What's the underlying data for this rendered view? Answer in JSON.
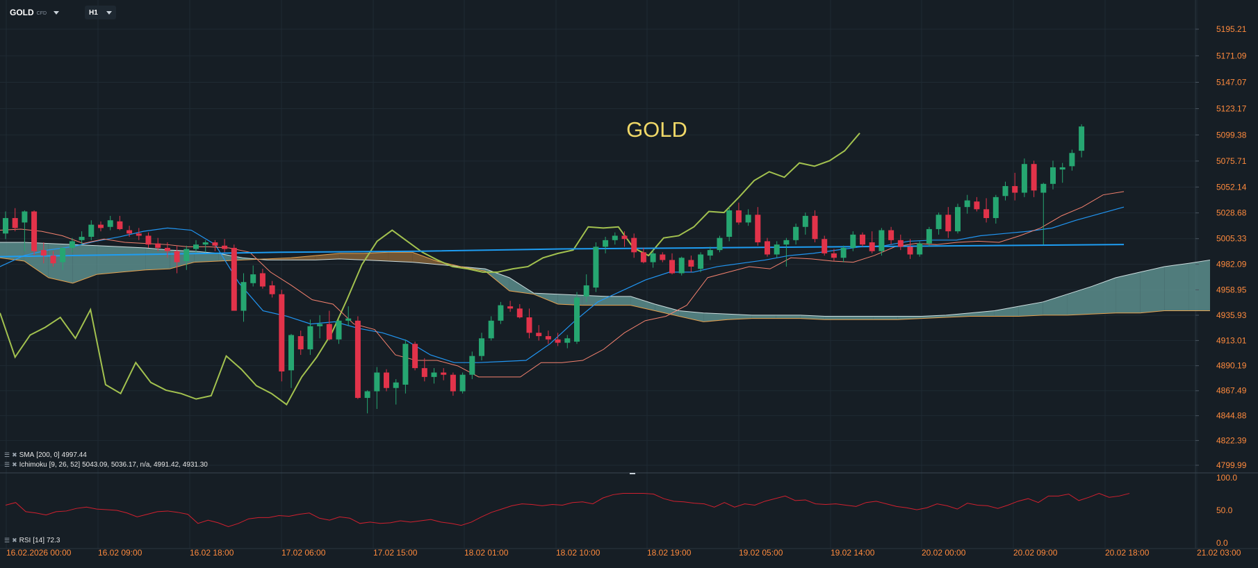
{
  "toolbar": {
    "symbol": "GOLD",
    "symbol_type": "CFD",
    "timeframe": "H1"
  },
  "chart_data": {
    "type": "candlestick",
    "title": "GOLD",
    "colors": {
      "background": "#161e25",
      "up": "#26a671",
      "down": "#e2334a",
      "sma": "#1e9df2",
      "tenkan": "#f5826f",
      "kijun": "#2196f3",
      "chikou": "#a3c24f",
      "cloud_bull": "#5f9392",
      "cloud_bear": "#8a6438",
      "axis_text": "#ff8a3d",
      "rsi": "#d1202f",
      "title_text": "#f0d868"
    },
    "price_axis": {
      "ylim": [
        4799.99,
        5195.21
      ],
      "ticks": [
        "5195.21",
        "5171.09",
        "5147.07",
        "5123.17",
        "5099.38",
        "5075.71",
        "5052.14",
        "5028.68",
        "5005.33",
        "4982.09",
        "4958.95",
        "4935.93",
        "4913.01",
        "4890.19",
        "4867.49",
        "4844.88",
        "4822.39",
        "4799.99"
      ]
    },
    "time_axis": {
      "labels": [
        "16.02.2026  00:00",
        "16.02  09:00",
        "16.02  18:00",
        "17.02  06:00",
        "17.02  15:00",
        "18.02  01:00",
        "18.02  10:00",
        "18.02  19:00",
        "19.02  05:00",
        "19.02  14:00",
        "20.02  00:00",
        "20.02  09:00",
        "20.02  18:00",
        "21.02  03:00"
      ]
    },
    "candles": [
      [
        5010,
        5030,
        5005,
        5024
      ],
      [
        5024,
        5033,
        5012,
        5015
      ],
      [
        5020,
        5031,
        4994,
        5030
      ],
      [
        5030,
        5031,
        4990,
        4994
      ],
      [
        4995,
        5002,
        4983,
        4990
      ],
      [
        4990,
        4994,
        4980,
        4983
      ],
      [
        4984,
        4997,
        4977,
        4997
      ],
      [
        4997,
        5006,
        4993,
        5003
      ],
      [
        5004,
        5012,
        5000,
        5007
      ],
      [
        5007,
        5022,
        5004,
        5018
      ],
      [
        5018,
        5021,
        5012,
        5015
      ],
      [
        5016,
        5026,
        5013,
        5022
      ],
      [
        5021,
        5026,
        5013,
        5014
      ],
      [
        5013,
        5017,
        5007,
        5010
      ],
      [
        5010,
        5015,
        5004,
        5008
      ],
      [
        5008,
        5011,
        4997,
        5000
      ],
      [
        5001,
        5006,
        4994,
        4997
      ],
      [
        4997,
        5002,
        4988,
        4994
      ],
      [
        4994,
        4999,
        4974,
        4984
      ],
      [
        4985,
        4999,
        4977,
        4996
      ],
      [
        4996,
        5004,
        4993,
        5000
      ],
      [
        5000,
        5004,
        4993,
        5002
      ],
      [
        5002,
        5004,
        4994,
        4999
      ],
      [
        4999,
        5005,
        4993,
        4996
      ],
      [
        4997,
        5000,
        4940,
        4940
      ],
      [
        4940,
        4974,
        4930,
        4966
      ],
      [
        4965,
        4981,
        4962,
        4973
      ],
      [
        4974,
        4978,
        4960,
        4962
      ],
      [
        4963,
        4967,
        4952,
        4955
      ],
      [
        4955,
        4959,
        4876,
        4885
      ],
      [
        4886,
        4919,
        4870,
        4918
      ],
      [
        4917,
        4922,
        4900,
        4905
      ],
      [
        4905,
        4932,
        4900,
        4926
      ],
      [
        4926,
        4936,
        4915,
        4928
      ],
      [
        4928,
        4940,
        4913,
        4914
      ],
      [
        4914,
        4932,
        4910,
        4931
      ],
      [
        4931,
        4944,
        4926,
        4933
      ],
      [
        4931,
        4935,
        4860,
        4861
      ],
      [
        4861,
        4868,
        4847,
        4867
      ],
      [
        4867,
        4889,
        4851,
        4884
      ],
      [
        4884,
        4887,
        4867,
        4870
      ],
      [
        4870,
        4878,
        4855,
        4875
      ],
      [
        4873,
        4914,
        4865,
        4910
      ],
      [
        4910,
        4912,
        4886,
        4888
      ],
      [
        4888,
        4897,
        4876,
        4880
      ],
      [
        4880,
        4888,
        4874,
        4884
      ],
      [
        4884,
        4888,
        4877,
        4882
      ],
      [
        4882,
        4884,
        4863,
        4867
      ],
      [
        4867,
        4884,
        4865,
        4882
      ],
      [
        4882,
        4903,
        4878,
        4899
      ],
      [
        4899,
        4920,
        4895,
        4915
      ],
      [
        4915,
        4935,
        4913,
        4931
      ],
      [
        4931,
        4948,
        4928,
        4945
      ],
      [
        4944,
        4949,
        4939,
        4942
      ],
      [
        4942,
        4946,
        4933,
        4934
      ],
      [
        4934,
        4942,
        4915,
        4920
      ],
      [
        4920,
        4927,
        4913,
        4917
      ],
      [
        4917,
        4922,
        4910,
        4914
      ],
      [
        4914,
        4920,
        4908,
        4911
      ],
      [
        4911,
        4918,
        4906,
        4915
      ],
      [
        4912,
        4957,
        4910,
        4952
      ],
      [
        4953,
        4973,
        4948,
        4963
      ],
      [
        4961,
        5002,
        4957,
        4998
      ],
      [
        4998,
        5007,
        4992,
        5004
      ],
      [
        5004,
        5011,
        5000,
        5008
      ],
      [
        5008,
        5012,
        4998,
        5005
      ],
      [
        5006,
        5010,
        4988,
        4993
      ],
      [
        4993,
        4997,
        4983,
        4984
      ],
      [
        4984,
        4995,
        4979,
        4992
      ],
      [
        4991,
        4993,
        4984,
        4986
      ],
      [
        4986,
        4992,
        4973,
        4974
      ],
      [
        4974,
        4989,
        4972,
        4988
      ],
      [
        4986,
        4990,
        4975,
        4980
      ],
      [
        4978,
        4993,
        4975,
        4991
      ],
      [
        4990,
        4998,
        4986,
        4995
      ],
      [
        4995,
        5008,
        4993,
        5006
      ],
      [
        5007,
        5034,
        5003,
        5031
      ],
      [
        5031,
        5038,
        5018,
        5020
      ],
      [
        5020,
        5032,
        5017,
        5027
      ],
      [
        5027,
        5034,
        4999,
        5002
      ],
      [
        5003,
        5006,
        4989,
        4991
      ],
      [
        4991,
        5003,
        4988,
        5000
      ],
      [
        5000,
        5006,
        4980,
        5004
      ],
      [
        5004,
        5019,
        5000,
        5016
      ],
      [
        5016,
        5029,
        5009,
        5026
      ],
      [
        5026,
        5031,
        5002,
        5005
      ],
      [
        5005,
        5008,
        4990,
        4992
      ],
      [
        4992,
        4996,
        4985,
        4988
      ],
      [
        4988,
        4999,
        4984,
        4997
      ],
      [
        4997,
        5012,
        4994,
        5009
      ],
      [
        5009,
        5011,
        4998,
        5000
      ],
      [
        5002,
        5012,
        4992,
        4994
      ],
      [
        4994,
        5015,
        4990,
        5013
      ],
      [
        5013,
        5016,
        5000,
        5004
      ],
      [
        5004,
        5009,
        4995,
        4998
      ],
      [
        4998,
        5005,
        4987,
        4991
      ],
      [
        4991,
        5003,
        4989,
        5001
      ],
      [
        5001,
        5016,
        4998,
        5014
      ],
      [
        5014,
        5029,
        5009,
        5027
      ],
      [
        5027,
        5034,
        5006,
        5012
      ],
      [
        5012,
        5037,
        5010,
        5034
      ],
      [
        5034,
        5045,
        5028,
        5040
      ],
      [
        5039,
        5043,
        5030,
        5032
      ],
      [
        5032,
        5042,
        5020,
        5024
      ],
      [
        5024,
        5045,
        5019,
        5043
      ],
      [
        5044,
        5057,
        5040,
        5053
      ],
      [
        5053,
        5065,
        5040,
        5047
      ],
      [
        5047,
        5078,
        5043,
        5073
      ],
      [
        5073,
        5076,
        5043,
        5049
      ],
      [
        5047,
        5056,
        5000,
        5055
      ],
      [
        5055,
        5076,
        5050,
        5070
      ],
      [
        5068,
        5074,
        5056,
        5070
      ],
      [
        5071,
        5086,
        5067,
        5083
      ],
      [
        5085,
        5109,
        5079,
        5107
      ]
    ],
    "sma": {
      "name": "SMA",
      "params": "[200,  0]",
      "value_text": "4997.44",
      "values": [
        4989,
        4991,
        4993,
        4994,
        4996,
        4997,
        4998,
        4999,
        5000
      ]
    },
    "ichimoku": {
      "name": "Ichimoku",
      "params": "[9, 26, 52]",
      "value_text": "5043.09,   5036.17,   n/a,  4991.42,   4931.30",
      "tenkan": [
        5013,
        5014,
        5012,
        5008,
        5001,
        5005,
        5002,
        5001,
        5000,
        4998,
        4998,
        4997,
        4993,
        4975,
        4963,
        4950,
        4946,
        4928,
        4923,
        4900,
        4895,
        4895,
        4890,
        4880,
        4880,
        4880,
        4893,
        4893,
        4895,
        4905,
        4920,
        4931,
        4935,
        4945,
        4970,
        4975,
        4980,
        4978,
        4988,
        4987,
        4985,
        4984,
        4990,
        4998,
        5001,
        5000,
        5002,
        5003,
        5002,
        5008,
        5015,
        5026,
        5034,
        5045,
        5048
      ],
      "kijun": [
        4980,
        4990,
        4995,
        4998,
        5003,
        5007,
        5012,
        5015,
        5013,
        5000,
        4965,
        4940,
        4935,
        4928,
        4930,
        4924,
        4920,
        4913,
        4900,
        4893,
        4893,
        4894,
        4895,
        4910,
        4930,
        4948,
        4958,
        4968,
        4975,
        4975,
        4980,
        4983,
        4986,
        4990,
        4992,
        4995,
        4998,
        4999,
        5003,
        5004,
        5004,
        5008,
        5010,
        5012,
        5015,
        5022,
        5028,
        5034
      ],
      "span_a": [
        5002,
        5002,
        5001,
        5000,
        4999,
        4998,
        4997,
        4995,
        4994,
        4992,
        4988,
        4986,
        4986,
        4986,
        4987,
        4986,
        4985,
        4984,
        4982,
        4980,
        4978,
        4970,
        4956,
        4955,
        4954,
        4953,
        4953,
        4946,
        4940,
        4938,
        4937,
        4936,
        4936,
        4936,
        4935,
        4935,
        4935,
        4935,
        4935,
        4936,
        4938,
        4940,
        4944,
        4948,
        4955,
        4962,
        4970,
        4975,
        4980,
        4983,
        4986,
        4989,
        4991,
        4992,
        4993
      ],
      "span_b": [
        4988,
        4985,
        4970,
        4965,
        4973,
        4975,
        4977,
        4978,
        4984,
        4985,
        4986,
        4987,
        4988,
        4990,
        4992,
        4992,
        4993,
        4993,
        4985,
        4980,
        4976,
        4958,
        4955,
        4946,
        4945,
        4945,
        4945,
        4940,
        4935,
        4930,
        4932,
        4933,
        4933,
        4933,
        4932,
        4932,
        4932,
        4932,
        4933,
        4934,
        4935,
        4935,
        4935,
        4936,
        4936,
        4937,
        4938,
        4938,
        4940,
        4940,
        4940
      ],
      "chikou": [
        4938,
        4898,
        4918,
        4925,
        4934,
        4915,
        4941,
        4873,
        4865,
        4893,
        4875,
        4868,
        4865,
        4860,
        4863,
        4899,
        4887,
        4872,
        4865,
        4855,
        4880,
        4898,
        4920,
        4950,
        4982,
        5003,
        5013,
        5003,
        4993,
        4986,
        4980,
        4978,
        4975,
        4975,
        4978,
        4980,
        4988,
        4992,
        4995,
        5016,
        5015,
        5016,
        4997,
        4990,
        5006,
        5008,
        5016,
        5030,
        5029,
        5043,
        5058,
        5066,
        5061,
        5074,
        5071,
        5076,
        5085,
        5101
      ]
    },
    "rsi": {
      "name": "RSI",
      "params": "[14]",
      "value_text": "72.3",
      "ylim": [
        0,
        100
      ],
      "ticks": [
        "100.0",
        "50.0",
        "0.0"
      ],
      "values": [
        58,
        62,
        48,
        46,
        43,
        48,
        49,
        53,
        55,
        52,
        51,
        50,
        46,
        40,
        44,
        48,
        49,
        47,
        44,
        30,
        35,
        31,
        25,
        30,
        37,
        39,
        39,
        42,
        41,
        44,
        46,
        38,
        35,
        40,
        38,
        30,
        32,
        30,
        31,
        34,
        32,
        34,
        36,
        32,
        30,
        27,
        32,
        40,
        47,
        52,
        57,
        60,
        59,
        57,
        59,
        58,
        62,
        63,
        60,
        69,
        74,
        76,
        76,
        76,
        75,
        68,
        64,
        63,
        61,
        60,
        55,
        62,
        55,
        60,
        58,
        64,
        68,
        72,
        65,
        66,
        60,
        59,
        60,
        58,
        56,
        62,
        64,
        60,
        56,
        54,
        51,
        54,
        60,
        57,
        52,
        61,
        58,
        57,
        53,
        58,
        64,
        68,
        62,
        72,
        72,
        75,
        65,
        70,
        76,
        70,
        72,
        76
      ]
    }
  }
}
